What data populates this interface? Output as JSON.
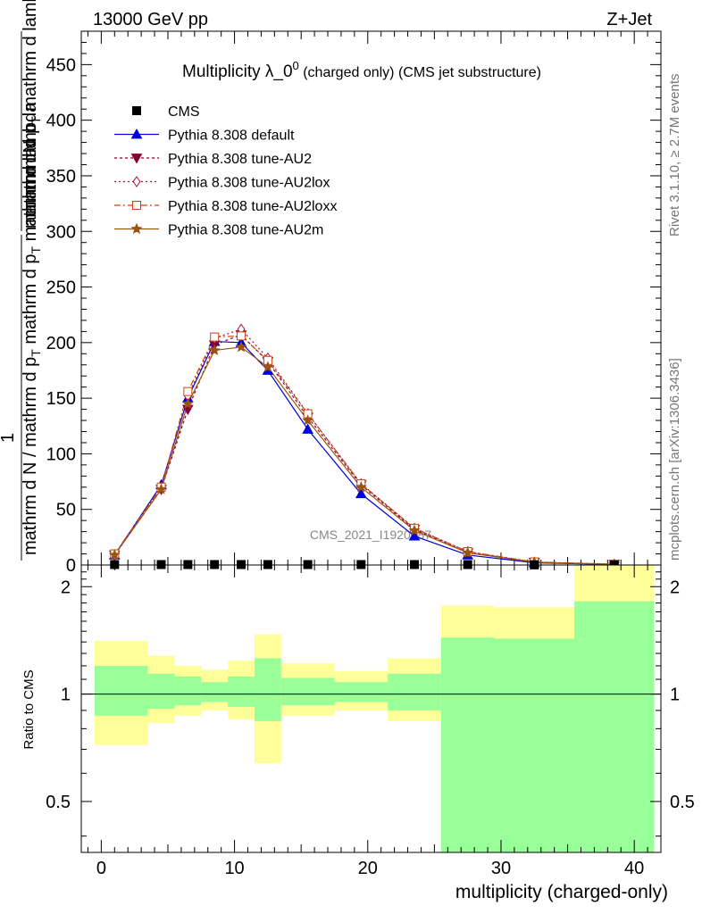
{
  "header": {
    "energy_label": "13000 GeV pp",
    "process_label": "Z+Jet",
    "rivet_label": "Rivet 3.1.10, ≥ 2.7M events",
    "mcplots_label": "mcplots.cern.ch [arXiv:1306.3436]",
    "analysis_watermark": "CMS_2021_I1920187"
  },
  "chart_data": [
    {
      "type": "line",
      "title_main": "Multiplicity λ_0",
      "title_sup": "0",
      "title_small": " (charged only) (CMS jet substructure)",
      "ylabel_top": "mathrm dN",
      "ylabel_mid": "mathrm d p",
      "ylabel_mid_sub": "T",
      "ylabel_mid2": " mathrm d lambda",
      "ylabel_one": "1",
      "ylabel_bottom": "mathrm d N / mathrm d p",
      "ylabel_bottom_sub": "T",
      "ylabel_bottom2": " mathrm d p",
      "ylabel_bottom2_sub": "T",
      "ylabel_bottom3": " mathrm d lambda",
      "xlim": [
        -1.5,
        42
      ],
      "ylim": [
        0,
        480
      ],
      "yticks": [
        0,
        50,
        100,
        150,
        200,
        250,
        300,
        350,
        400,
        450
      ],
      "xticks": [
        0,
        10,
        20,
        30,
        40
      ],
      "x": [
        1,
        4.5,
        6.5,
        8.5,
        10.5,
        12.5,
        15.5,
        19.5,
        23.5,
        27.5,
        32.5,
        38.5
      ],
      "cms": {
        "name": "CMS",
        "values": [
          0.4,
          0.4,
          0.4,
          0.4,
          0.4,
          0.4,
          0.4,
          0.4,
          0.4,
          0.4,
          0.1,
          0.1
        ]
      },
      "series": [
        {
          "name": "Pythia 8.308 default",
          "color": "#0000dd",
          "dash": "",
          "marker": "triangle-up",
          "values": [
            9,
            72,
            150,
            201,
            200,
            175,
            122,
            64,
            26,
            9,
            2,
            0.5
          ]
        },
        {
          "name": "Pythia 8.308 tune-AU2",
          "color": "#880033",
          "dash": "3,3",
          "marker": "triangle-down",
          "values": [
            9,
            68,
            140,
            198,
            207,
            183,
            133,
            72,
            32,
            11,
            2.5,
            0.6
          ]
        },
        {
          "name": "Pythia 8.308 tune-AU2lox",
          "color": "#aa1133",
          "dash": "2,3",
          "marker": "diamond",
          "values": [
            9,
            70,
            152,
            204,
            212,
            186,
            136,
            73,
            33,
            12,
            2.5,
            0.6
          ]
        },
        {
          "name": "Pythia 8.308 tune-AU2loxx",
          "color": "#cc4411",
          "dash": "7,3,2,3",
          "marker": "square",
          "values": [
            10,
            70,
            156,
            205,
            206,
            184,
            136,
            73,
            33,
            12,
            2.8,
            0.7
          ]
        },
        {
          "name": "Pythia 8.308 tune-AU2m",
          "color": "#995511",
          "dash": "",
          "marker": "star",
          "values": [
            9,
            68,
            145,
            193,
            196,
            178,
            130,
            70,
            31,
            11,
            2.5,
            0.6
          ]
        }
      ]
    },
    {
      "type": "area",
      "ylabel": "Ratio to CMS",
      "xlabel": "multiplicity (charged-only)",
      "ylim": [
        0.36,
        2.3
      ],
      "yticks": [
        0.5,
        1,
        2
      ],
      "ytick_labels": [
        "0.5",
        "1",
        "2"
      ],
      "xticks": [
        0,
        10,
        20,
        30,
        40
      ],
      "reference": 1,
      "bins": [
        {
          "lo": -0.5,
          "hi": 3.5,
          "green": [
            0.87,
            1.2
          ],
          "yellow": [
            0.72,
            1.41
          ]
        },
        {
          "lo": 3.5,
          "hi": 5.5,
          "green": [
            0.91,
            1.14
          ],
          "yellow": [
            0.83,
            1.28
          ]
        },
        {
          "lo": 5.5,
          "hi": 7.5,
          "green": [
            0.93,
            1.12
          ],
          "yellow": [
            0.87,
            1.2
          ]
        },
        {
          "lo": 7.5,
          "hi": 9.5,
          "green": [
            0.95,
            1.08
          ],
          "yellow": [
            0.9,
            1.17
          ]
        },
        {
          "lo": 9.5,
          "hi": 11.5,
          "green": [
            0.92,
            1.12
          ],
          "yellow": [
            0.85,
            1.24
          ]
        },
        {
          "lo": 11.5,
          "hi": 13.5,
          "green": [
            0.84,
            1.26
          ],
          "yellow": [
            0.64,
            1.47
          ]
        },
        {
          "lo": 13.5,
          "hi": 17.5,
          "green": [
            0.93,
            1.11
          ],
          "yellow": [
            0.87,
            1.22
          ]
        },
        {
          "lo": 17.5,
          "hi": 21.5,
          "green": [
            0.95,
            1.08
          ],
          "yellow": [
            0.9,
            1.16
          ]
        },
        {
          "lo": 21.5,
          "hi": 25.5,
          "green": [
            0.9,
            1.14
          ],
          "yellow": [
            0.84,
            1.26
          ]
        },
        {
          "lo": 25.5,
          "hi": 29.5,
          "green": [
            0.36,
            1.44
          ],
          "yellow": [
            0.36,
            1.77
          ]
        },
        {
          "lo": 29.5,
          "hi": 35.5,
          "green": [
            0.36,
            1.43
          ],
          "yellow": [
            0.36,
            1.75
          ]
        },
        {
          "lo": 35.5,
          "hi": 41.5,
          "green": [
            0.36,
            1.82
          ],
          "yellow": [
            0.36,
            2.3
          ]
        }
      ]
    }
  ]
}
